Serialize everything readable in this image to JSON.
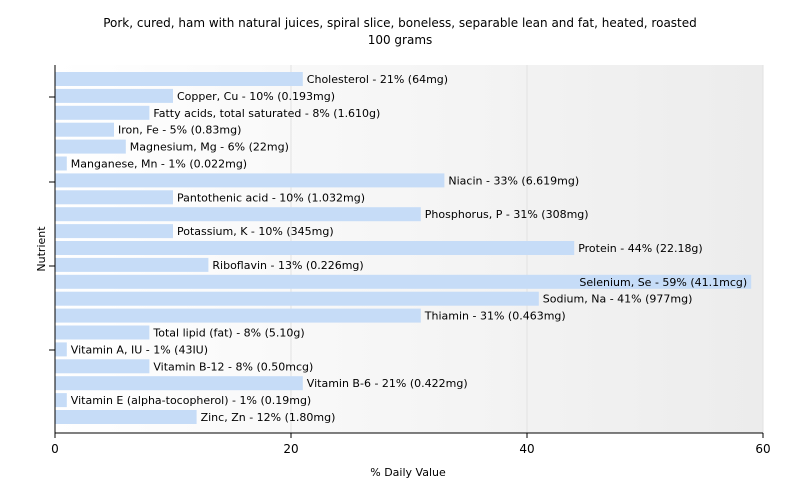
{
  "chart_data": {
    "type": "bar",
    "orientation": "horizontal",
    "title": "Pork, cured, ham with natural juices, spiral slice, boneless, separable lean and fat, heated, roasted",
    "subtitle": "100 grams",
    "xlabel": "% Daily Value",
    "ylabel": "Nutrient",
    "xlim": [
      0,
      60
    ],
    "xticks": [
      "0",
      "20",
      "40",
      "60"
    ],
    "grid": "vertical",
    "legend": "none",
    "bar_color": "#c6dcf7",
    "categories": [
      "Cholesterol",
      "Copper, Cu",
      "Fatty acids, total saturated",
      "Iron, Fe",
      "Magnesium, Mg",
      "Manganese, Mn",
      "Niacin",
      "Pantothenic acid",
      "Phosphorus, P",
      "Potassium, K",
      "Protein",
      "Riboflavin",
      "Selenium, Se",
      "Sodium, Na",
      "Thiamin",
      "Total lipid (fat)",
      "Vitamin A, IU",
      "Vitamin B-12",
      "Vitamin B-6",
      "Vitamin E (alpha-tocopherol)",
      "Zinc, Zn"
    ],
    "values": [
      21,
      10,
      8,
      5,
      6,
      1,
      33,
      10,
      31,
      10,
      44,
      13,
      59,
      41,
      31,
      8,
      1,
      8,
      21,
      1,
      12
    ],
    "labels": [
      "Cholesterol - 21% (64mg)",
      "Copper, Cu - 10% (0.193mg)",
      "Fatty acids, total saturated - 8% (1.610g)",
      "Iron, Fe - 5% (0.83mg)",
      "Magnesium, Mg - 6% (22mg)",
      "Manganese, Mn - 1% (0.022mg)",
      "Niacin - 33% (6.619mg)",
      "Pantothenic acid - 10% (1.032mg)",
      "Phosphorus, P - 31% (308mg)",
      "Potassium, K - 10% (345mg)",
      "Protein - 44% (22.18g)",
      "Riboflavin - 13% (0.226mg)",
      "Selenium, Se - 59% (41.1mcg)",
      "Sodium, Na - 41% (977mg)",
      "Thiamin - 31% (0.463mg)",
      "Total lipid (fat) - 8% (5.10g)",
      "Vitamin A, IU - 1% (43IU)",
      "Vitamin B-12 - 8% (0.50mcg)",
      "Vitamin B-6 - 21% (0.422mg)",
      "Vitamin E (alpha-tocopherol) - 1% (0.19mg)",
      "Zinc, Zn - 12% (1.80mg)"
    ]
  }
}
